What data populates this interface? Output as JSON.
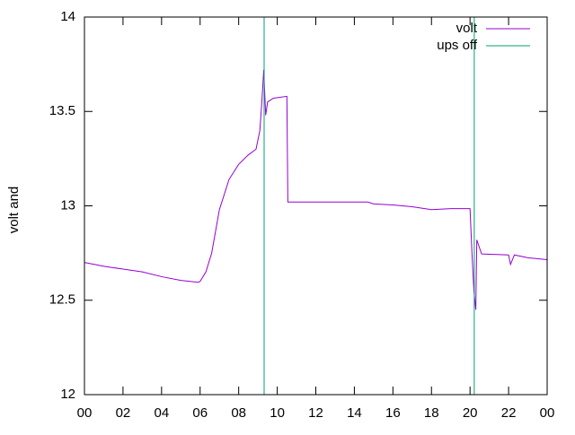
{
  "chart_data": {
    "type": "line",
    "ylabel": "volt and",
    "xlim": [
      0,
      24
    ],
    "xticks": [
      {
        "value": 0,
        "label": "00"
      },
      {
        "value": 2,
        "label": "02"
      },
      {
        "value": 4,
        "label": "04"
      },
      {
        "value": 6,
        "label": "06"
      },
      {
        "value": 8,
        "label": "08"
      },
      {
        "value": 10,
        "label": "10"
      },
      12,
      14,
      16,
      18,
      20,
      22,
      {
        "value": 24,
        "label": "00"
      }
    ],
    "ylim": [
      12,
      14
    ],
    "yticks": [
      12,
      12.5,
      13,
      13.5,
      14
    ],
    "legend": "top-right",
    "series": [
      {
        "name": "volt",
        "color": "#9400d3",
        "x": [
          0,
          1,
          2,
          3,
          4,
          5,
          5.9,
          6.0,
          6.3,
          6.6,
          7.0,
          7.5,
          8.0,
          8.5,
          8.9,
          9.1,
          9.2,
          9.3,
          9.4,
          9.5,
          9.8,
          10.5,
          10.55,
          14.7,
          15,
          16,
          17,
          18,
          19,
          20,
          20.1,
          20.2,
          20.3,
          20.35,
          20.6,
          22,
          22.1,
          22.3,
          23,
          24
        ],
        "values": [
          12.7,
          12.68,
          12.665,
          12.65,
          12.625,
          12.605,
          12.595,
          12.6,
          12.65,
          12.75,
          12.98,
          13.14,
          13.22,
          13.27,
          13.3,
          13.4,
          13.55,
          13.72,
          13.48,
          13.55,
          13.57,
          13.58,
          13.02,
          13.02,
          13.01,
          13.005,
          12.995,
          12.98,
          12.985,
          12.985,
          12.75,
          12.55,
          12.45,
          12.82,
          12.745,
          12.74,
          12.69,
          12.74,
          12.725,
          12.715
        ]
      },
      {
        "name": "ups off",
        "color": "#009e73",
        "x": [
          9.32,
          9.32,
          9.33,
          20.22,
          20.22
        ],
        "values": [
          14,
          12,
          null,
          12,
          14
        ]
      }
    ]
  }
}
